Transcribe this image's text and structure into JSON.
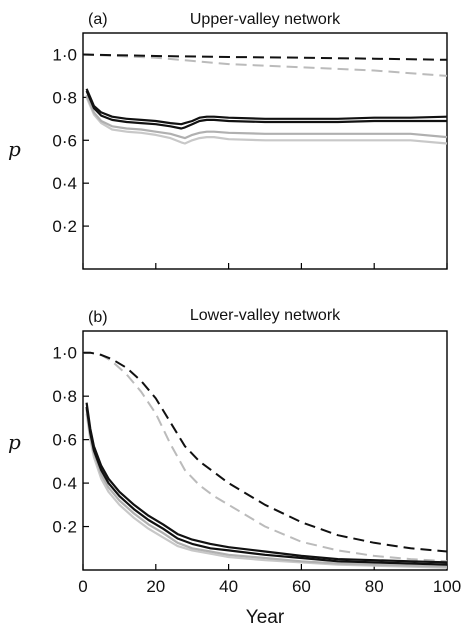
{
  "chart_data": [
    {
      "type": "line",
      "panel": "(a)",
      "title": "Upper-valley network",
      "ylabel": "p",
      "xlabel": "",
      "xlim": [
        0,
        100
      ],
      "ylim": [
        0,
        1.1
      ],
      "xticks": [
        0,
        20,
        40,
        60,
        80,
        100
      ],
      "yticks": [
        "0·2",
        "0·4",
        "0·6",
        "0·8",
        "1·0"
      ],
      "ytick_values": [
        0.2,
        0.4,
        0.6,
        0.8,
        1.0
      ],
      "show_xtick_labels": false,
      "series": [
        {
          "color": "#bbbbbb",
          "dash": true,
          "x": [
            0,
            20,
            30,
            40,
            60,
            80,
            100
          ],
          "y": [
            1.0,
            0.985,
            0.97,
            0.955,
            0.94,
            0.925,
            0.9
          ]
        },
        {
          "color": "#111111",
          "dash": true,
          "x": [
            0,
            20,
            40,
            60,
            80,
            100
          ],
          "y": [
            1.0,
            0.993,
            0.988,
            0.985,
            0.98,
            0.975
          ]
        },
        {
          "color": "#c8c8c8",
          "dash": false,
          "x": [
            1,
            2,
            3,
            5,
            8,
            12,
            16,
            20,
            24,
            27,
            28,
            30,
            32,
            34,
            36,
            40,
            50,
            60,
            70,
            80,
            90,
            100
          ],
          "y": [
            0.8,
            0.76,
            0.72,
            0.68,
            0.65,
            0.64,
            0.635,
            0.625,
            0.61,
            0.59,
            0.585,
            0.6,
            0.61,
            0.615,
            0.615,
            0.605,
            0.6,
            0.6,
            0.6,
            0.6,
            0.6,
            0.585
          ]
        },
        {
          "color": "#b0b0b0",
          "dash": false,
          "x": [
            1,
            2,
            3,
            5,
            8,
            12,
            16,
            20,
            24,
            27,
            28,
            30,
            32,
            34,
            36,
            40,
            50,
            60,
            70,
            80,
            90,
            100
          ],
          "y": [
            0.81,
            0.77,
            0.73,
            0.69,
            0.665,
            0.655,
            0.65,
            0.64,
            0.63,
            0.615,
            0.61,
            0.625,
            0.635,
            0.64,
            0.64,
            0.635,
            0.63,
            0.63,
            0.63,
            0.63,
            0.63,
            0.615
          ]
        },
        {
          "color": "#111111",
          "dash": false,
          "x": [
            1,
            2,
            3,
            5,
            8,
            12,
            16,
            20,
            24,
            27,
            28,
            30,
            32,
            34,
            36,
            40,
            50,
            60,
            70,
            80,
            90,
            100
          ],
          "y": [
            0.83,
            0.79,
            0.75,
            0.715,
            0.695,
            0.685,
            0.68,
            0.675,
            0.665,
            0.655,
            0.66,
            0.675,
            0.69,
            0.695,
            0.695,
            0.69,
            0.685,
            0.685,
            0.685,
            0.69,
            0.69,
            0.69
          ]
        },
        {
          "color": "#111111",
          "dash": false,
          "x": [
            1,
            2,
            3,
            5,
            8,
            12,
            16,
            20,
            24,
            27,
            28,
            30,
            32,
            34,
            36,
            40,
            50,
            60,
            70,
            80,
            90,
            100
          ],
          "y": [
            0.84,
            0.8,
            0.76,
            0.73,
            0.71,
            0.7,
            0.695,
            0.69,
            0.68,
            0.675,
            0.68,
            0.69,
            0.705,
            0.71,
            0.71,
            0.705,
            0.7,
            0.7,
            0.7,
            0.705,
            0.705,
            0.71
          ]
        }
      ]
    },
    {
      "type": "line",
      "panel": "(b)",
      "title": "Lower-valley network",
      "ylabel": "p",
      "xlabel": "Year",
      "xlim": [
        0,
        100
      ],
      "ylim": [
        0,
        1.1
      ],
      "xticks": [
        0,
        20,
        40,
        60,
        80,
        100
      ],
      "yticks": [
        "0·2",
        "0·4",
        "0·6",
        "0·8",
        "1·0"
      ],
      "ytick_values": [
        0.2,
        0.4,
        0.6,
        0.8,
        1.0
      ],
      "show_xtick_labels": true,
      "series": [
        {
          "color": "#bbbbbb",
          "dash": true,
          "x": [
            0,
            2,
            5,
            8,
            12,
            16,
            20,
            24,
            28,
            32,
            36,
            40,
            50,
            60,
            70,
            80,
            90,
            100
          ],
          "y": [
            1.0,
            1.0,
            0.99,
            0.96,
            0.9,
            0.82,
            0.72,
            0.58,
            0.46,
            0.39,
            0.34,
            0.3,
            0.2,
            0.13,
            0.09,
            0.065,
            0.05,
            0.04
          ]
        },
        {
          "color": "#111111",
          "dash": true,
          "x": [
            0,
            2,
            5,
            8,
            12,
            16,
            20,
            24,
            28,
            32,
            36,
            40,
            50,
            60,
            70,
            80,
            90,
            100
          ],
          "y": [
            1.0,
            1.0,
            0.99,
            0.97,
            0.93,
            0.87,
            0.79,
            0.68,
            0.57,
            0.5,
            0.45,
            0.4,
            0.3,
            0.22,
            0.16,
            0.125,
            0.1,
            0.085
          ]
        },
        {
          "color": "#c8c8c8",
          "dash": false,
          "x": [
            1,
            2,
            3,
            5,
            7,
            10,
            14,
            18,
            22,
            26,
            30,
            35,
            40,
            50,
            60,
            70,
            80,
            90,
            100
          ],
          "y": [
            0.72,
            0.6,
            0.52,
            0.42,
            0.36,
            0.3,
            0.24,
            0.19,
            0.15,
            0.11,
            0.09,
            0.075,
            0.06,
            0.045,
            0.035,
            0.025,
            0.02,
            0.015,
            0.01
          ]
        },
        {
          "color": "#b0b0b0",
          "dash": false,
          "x": [
            1,
            2,
            3,
            5,
            7,
            10,
            14,
            18,
            22,
            26,
            30,
            35,
            40,
            50,
            60,
            70,
            80,
            90,
            100
          ],
          "y": [
            0.74,
            0.62,
            0.54,
            0.44,
            0.38,
            0.32,
            0.26,
            0.21,
            0.17,
            0.125,
            0.1,
            0.085,
            0.07,
            0.055,
            0.04,
            0.03,
            0.025,
            0.02,
            0.015
          ]
        },
        {
          "color": "#111111",
          "dash": false,
          "x": [
            1,
            2,
            3,
            5,
            7,
            10,
            14,
            18,
            22,
            26,
            30,
            35,
            40,
            50,
            60,
            70,
            80,
            90,
            100
          ],
          "y": [
            0.75,
            0.63,
            0.55,
            0.46,
            0.4,
            0.34,
            0.28,
            0.23,
            0.19,
            0.145,
            0.12,
            0.1,
            0.09,
            0.07,
            0.055,
            0.04,
            0.035,
            0.03,
            0.025
          ]
        },
        {
          "color": "#111111",
          "dash": false,
          "x": [
            1,
            2,
            3,
            5,
            7,
            10,
            14,
            18,
            22,
            26,
            30,
            35,
            40,
            50,
            60,
            70,
            80,
            90,
            100
          ],
          "y": [
            0.77,
            0.65,
            0.57,
            0.48,
            0.42,
            0.36,
            0.3,
            0.25,
            0.21,
            0.165,
            0.14,
            0.12,
            0.105,
            0.085,
            0.065,
            0.05,
            0.045,
            0.04,
            0.035
          ]
        }
      ]
    }
  ]
}
